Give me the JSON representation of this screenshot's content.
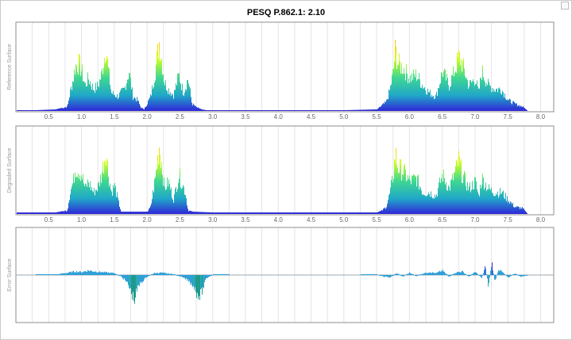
{
  "title": "PESQ P.862.1: 2.10",
  "chart_data": [
    {
      "type": "area",
      "ylabel": "Reference Surface",
      "xlim": [
        0.0,
        8.2
      ],
      "x_ticks": [
        "0.5",
        "1.0",
        "1.5",
        "2.0",
        "2.5",
        "3.0",
        "3.5",
        "4.0",
        "4.5",
        "5.0",
        "5.5",
        "6.0",
        "6.5",
        "7.0",
        "7.5",
        "8.0"
      ],
      "ylim": [
        0,
        1
      ],
      "series": [
        {
          "x": [
            0.0,
            0.6,
            0.78,
            0.82,
            0.87,
            0.9,
            0.96,
            1.0,
            1.05,
            1.1,
            1.18,
            1.25,
            1.3,
            1.37,
            1.4,
            1.45,
            1.55,
            1.65,
            1.72,
            1.78,
            1.85,
            1.9,
            1.95,
            2.05,
            2.12,
            2.18,
            2.22,
            2.26,
            2.32,
            2.4,
            2.48,
            2.55,
            2.62,
            2.68,
            2.75,
            2.83,
            2.9,
            3.0,
            3.5,
            4.0,
            4.5,
            5.0,
            5.5,
            5.58,
            5.64,
            5.7,
            5.75,
            5.78,
            5.82,
            5.9,
            6.0,
            6.1,
            6.2,
            6.3,
            6.4,
            6.5,
            6.6,
            6.7,
            6.75,
            6.8,
            6.9,
            7.0,
            7.05,
            7.1,
            7.2,
            7.3,
            7.4,
            7.5,
            7.6,
            7.72,
            7.8,
            8.2
          ],
          "y": [
            0.0,
            0.02,
            0.06,
            0.25,
            0.45,
            0.62,
            0.65,
            0.55,
            0.35,
            0.45,
            0.3,
            0.35,
            0.5,
            0.9,
            0.6,
            0.25,
            0.2,
            0.3,
            0.55,
            0.2,
            0.15,
            0.05,
            0.02,
            0.2,
            0.55,
            0.95,
            0.7,
            0.4,
            0.3,
            0.22,
            0.5,
            0.25,
            0.45,
            0.1,
            0.05,
            0.02,
            0.01,
            0.01,
            0.01,
            0.01,
            0.01,
            0.01,
            0.02,
            0.08,
            0.12,
            0.3,
            0.55,
            0.85,
            0.65,
            0.6,
            0.45,
            0.5,
            0.35,
            0.25,
            0.2,
            0.55,
            0.35,
            0.6,
            0.75,
            0.65,
            0.35,
            0.45,
            0.25,
            0.55,
            0.35,
            0.3,
            0.3,
            0.15,
            0.1,
            0.06,
            0.0,
            0.0
          ]
        }
      ]
    },
    {
      "type": "area",
      "ylabel": "Degraded Surface",
      "xlim": [
        0.0,
        8.2
      ],
      "x_ticks": [
        "0.5",
        "1.0",
        "1.5",
        "2.0",
        "2.5",
        "3.0",
        "3.5",
        "4.0",
        "4.5",
        "5.0",
        "5.5",
        "6.0",
        "6.5",
        "7.0",
        "7.5",
        "8.0"
      ],
      "ylim": [
        0,
        1
      ],
      "series": [
        {
          "x": [
            0.0,
            0.6,
            0.78,
            0.82,
            0.87,
            0.9,
            0.96,
            1.0,
            1.05,
            1.1,
            1.18,
            1.25,
            1.3,
            1.37,
            1.4,
            1.45,
            1.5,
            1.55,
            1.6,
            1.8,
            2.0,
            2.05,
            2.12,
            2.18,
            2.22,
            2.26,
            2.32,
            2.4,
            2.48,
            2.52,
            2.58,
            2.62,
            2.7,
            3.0,
            3.5,
            4.0,
            4.5,
            5.0,
            5.5,
            5.58,
            5.64,
            5.7,
            5.75,
            5.78,
            5.82,
            5.9,
            6.0,
            6.1,
            6.2,
            6.3,
            6.4,
            6.5,
            6.6,
            6.7,
            6.75,
            6.8,
            6.9,
            7.0,
            7.05,
            7.1,
            7.2,
            7.3,
            7.4,
            7.5,
            7.6,
            7.72,
            7.8,
            8.2
          ],
          "y": [
            0.02,
            0.02,
            0.05,
            0.3,
            0.45,
            0.65,
            0.6,
            0.55,
            0.35,
            0.45,
            0.3,
            0.38,
            0.55,
            0.9,
            0.6,
            0.3,
            0.4,
            0.2,
            0.03,
            0.03,
            0.03,
            0.1,
            0.5,
            0.95,
            0.7,
            0.35,
            0.45,
            0.2,
            0.55,
            0.45,
            0.3,
            0.05,
            0.03,
            0.02,
            0.02,
            0.02,
            0.02,
            0.02,
            0.02,
            0.05,
            0.1,
            0.3,
            0.55,
            0.85,
            0.65,
            0.6,
            0.45,
            0.5,
            0.3,
            0.3,
            0.25,
            0.55,
            0.35,
            0.6,
            0.75,
            0.55,
            0.35,
            0.45,
            0.25,
            0.5,
            0.35,
            0.3,
            0.3,
            0.2,
            0.1,
            0.08,
            0.0,
            0.0
          ]
        }
      ]
    },
    {
      "type": "bar",
      "ylabel": "Error Surface",
      "xlim": [
        0.0,
        8.2
      ],
      "ylim": [
        -1,
        1
      ],
      "series": [
        {
          "x": [
            0.0,
            0.6,
            0.7,
            0.8,
            0.9,
            1.0,
            1.1,
            1.2,
            1.3,
            1.4,
            1.5,
            1.6,
            1.65,
            1.7,
            1.75,
            1.8,
            1.85,
            1.9,
            1.95,
            2.0,
            2.1,
            2.2,
            2.3,
            2.4,
            2.5,
            2.6,
            2.7,
            2.75,
            2.8,
            2.85,
            2.9,
            3.0,
            3.5,
            4.0,
            4.5,
            5.0,
            5.5,
            5.6,
            5.7,
            5.8,
            5.9,
            6.0,
            6.1,
            6.2,
            6.3,
            6.4,
            6.5,
            6.6,
            6.7,
            6.8,
            6.9,
            7.0,
            7.1,
            7.15,
            7.2,
            7.25,
            7.3,
            7.35,
            7.4,
            7.5,
            7.6,
            7.7,
            7.8,
            8.2
          ],
          "y": [
            0.0,
            0.01,
            0.05,
            0.08,
            0.12,
            0.1,
            0.15,
            0.12,
            0.1,
            0.08,
            0.06,
            -0.05,
            -0.15,
            -0.3,
            -0.55,
            -0.85,
            -0.45,
            -0.25,
            -0.15,
            -0.05,
            0.06,
            0.08,
            0.05,
            0.03,
            -0.05,
            -0.15,
            -0.35,
            -0.6,
            -0.7,
            -0.45,
            -0.1,
            0.01,
            0.0,
            0.0,
            0.0,
            0.0,
            0.01,
            -0.05,
            -0.08,
            0.06,
            -0.05,
            0.08,
            -0.04,
            0.05,
            0.1,
            0.06,
            0.15,
            -0.06,
            0.08,
            0.12,
            -0.05,
            0.1,
            -0.1,
            0.3,
            -0.4,
            0.45,
            -0.25,
            0.2,
            0.12,
            -0.08,
            0.05,
            -0.06,
            0.0,
            0.0
          ]
        }
      ]
    }
  ]
}
